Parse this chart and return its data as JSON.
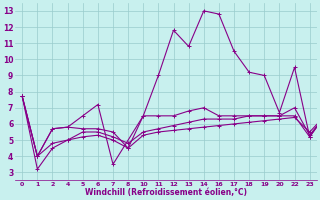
{
  "xlabel": "Windchill (Refroidissement éolien,°C)",
  "background_color": "#c8f0ee",
  "line_color": "#880088",
  "grid_color": "#99cccc",
  "series": [
    {
      "x_idx": [
        0,
        1,
        2,
        3,
        4,
        5,
        6,
        8,
        9,
        10,
        11,
        12,
        13,
        14,
        15,
        16,
        17,
        18,
        19,
        20
      ],
      "y": [
        7.7,
        4.0,
        5.7,
        5.8,
        6.5,
        7.2,
        3.5,
        6.5,
        9.0,
        11.8,
        10.8,
        13.0,
        12.8,
        10.5,
        9.2,
        9.0,
        6.7,
        9.5,
        5.2,
        6.5
      ]
    },
    {
      "x_idx": [
        0,
        1,
        2,
        3,
        4,
        5,
        6,
        7,
        8,
        9,
        10,
        11,
        12,
        13,
        14,
        15,
        16,
        17,
        18,
        19,
        20
      ],
      "y": [
        7.7,
        4.0,
        5.7,
        5.8,
        5.7,
        5.7,
        5.5,
        4.5,
        6.5,
        6.5,
        6.5,
        6.8,
        7.0,
        6.5,
        6.5,
        6.5,
        6.5,
        6.5,
        7.0,
        5.3,
        6.5
      ]
    },
    {
      "x_idx": [
        0,
        1,
        2,
        3,
        4,
        5,
        6,
        7,
        8,
        9,
        10,
        11,
        12,
        13,
        14,
        15,
        16,
        17,
        18,
        19,
        20
      ],
      "y": [
        7.7,
        3.2,
        4.5,
        5.0,
        5.5,
        5.5,
        5.2,
        4.8,
        5.5,
        5.7,
        5.9,
        6.1,
        6.3,
        6.3,
        6.3,
        6.5,
        6.5,
        6.5,
        6.5,
        5.2,
        6.5
      ]
    },
    {
      "x_idx": [
        0,
        1,
        2,
        3,
        4,
        5,
        6,
        7,
        8,
        9,
        10,
        11,
        12,
        13,
        14,
        15,
        16,
        17,
        18,
        19,
        20
      ],
      "y": [
        7.7,
        4.0,
        4.8,
        5.0,
        5.2,
        5.3,
        5.0,
        4.5,
        5.3,
        5.5,
        5.6,
        5.7,
        5.8,
        5.9,
        6.0,
        6.1,
        6.2,
        6.3,
        6.4,
        5.5,
        6.5
      ]
    }
  ],
  "xtick_labels": [
    "0",
    "1",
    "2",
    "4",
    "5",
    "6",
    "7",
    "8",
    "10",
    "11",
    "12",
    "13",
    "14",
    "16",
    "17",
    "18",
    "19",
    "20",
    "22",
    "23"
  ],
  "yticks": [
    3,
    4,
    5,
    6,
    7,
    8,
    9,
    10,
    11,
    12,
    13
  ],
  "n_xticks": 20,
  "ylim": [
    2.5,
    13.5
  ]
}
